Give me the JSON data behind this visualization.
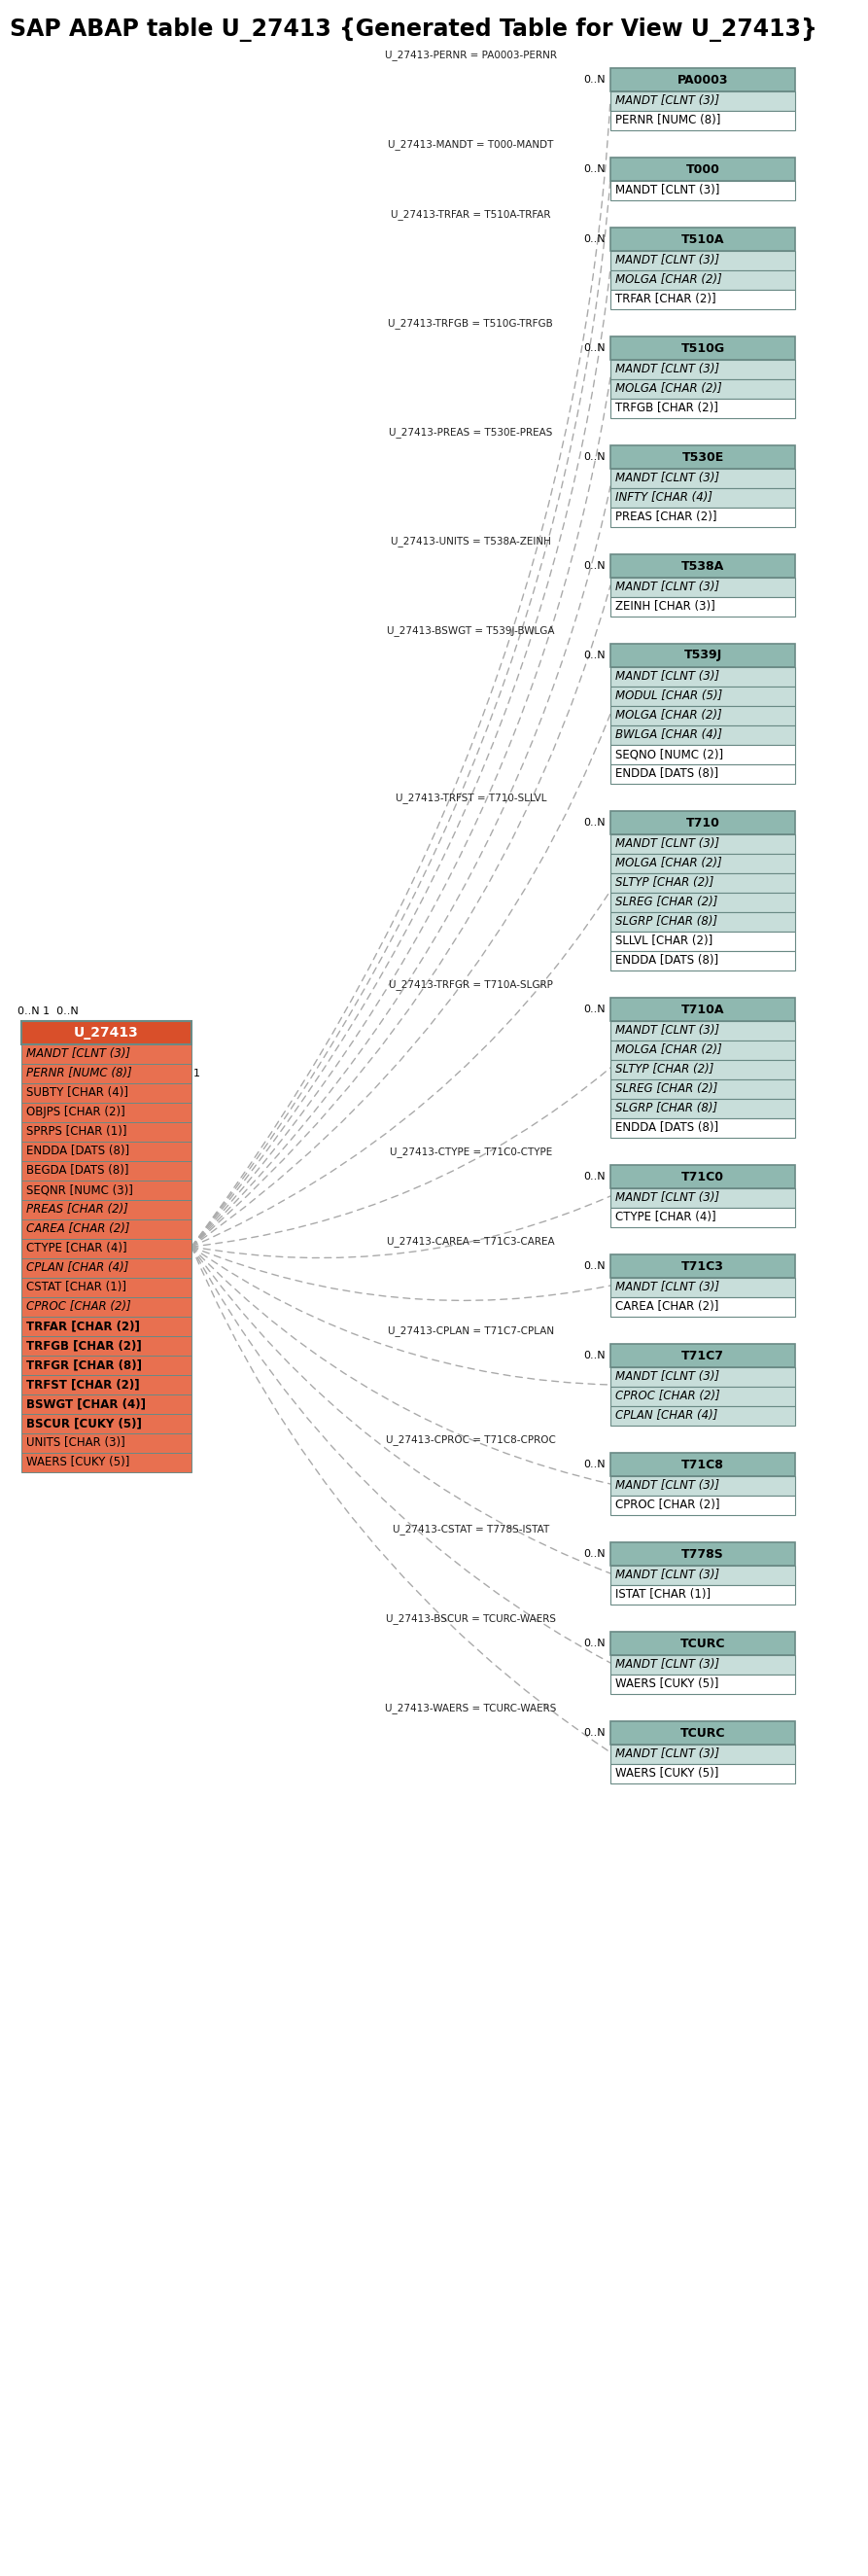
{
  "title": "SAP ABAP table U_27413 {Generated Table for View U_27413}",
  "main_table_name": "U_27413",
  "main_fields": [
    {
      "name": "MANDT",
      "type": "CLNT (3)",
      "italic": true,
      "underline": true,
      "bold": false
    },
    {
      "name": "PERNR",
      "type": "NUMC (8)",
      "italic": true,
      "underline": true,
      "bold": false
    },
    {
      "name": "SUBTY",
      "type": "CHAR (4)",
      "italic": false,
      "underline": true,
      "bold": false
    },
    {
      "name": "OBJPS",
      "type": "CHAR (2)",
      "italic": false,
      "underline": true,
      "bold": false
    },
    {
      "name": "SPRPS",
      "type": "CHAR (1)",
      "italic": false,
      "underline": true,
      "bold": false
    },
    {
      "name": "ENDDA",
      "type": "DATS (8)",
      "italic": false,
      "underline": true,
      "bold": false
    },
    {
      "name": "BEGDA",
      "type": "DATS (8)",
      "italic": false,
      "underline": true,
      "bold": false
    },
    {
      "name": "SEQNR",
      "type": "NUMC (3)",
      "italic": false,
      "underline": true,
      "bold": false
    },
    {
      "name": "PREAS",
      "type": "CHAR (2)",
      "italic": true,
      "underline": false,
      "bold": false
    },
    {
      "name": "CAREA",
      "type": "CHAR (2)",
      "italic": true,
      "underline": false,
      "bold": false
    },
    {
      "name": "CTYPE",
      "type": "CHAR (4)",
      "italic": false,
      "underline": false,
      "bold": false
    },
    {
      "name": "CPLAN",
      "type": "CHAR (4)",
      "italic": true,
      "underline": false,
      "bold": false
    },
    {
      "name": "CSTAT",
      "type": "CHAR (1)",
      "italic": false,
      "underline": false,
      "bold": false
    },
    {
      "name": "CPROC",
      "type": "CHAR (2)",
      "italic": true,
      "underline": false,
      "bold": false
    },
    {
      "name": "TRFAR",
      "type": "CHAR (2)",
      "italic": false,
      "underline": false,
      "bold": true
    },
    {
      "name": "TRFGB",
      "type": "CHAR (2)",
      "italic": false,
      "underline": false,
      "bold": true
    },
    {
      "name": "TRFGR",
      "type": "CHAR (8)",
      "italic": false,
      "underline": false,
      "bold": true
    },
    {
      "name": "TRFST",
      "type": "CHAR (2)",
      "italic": false,
      "underline": false,
      "bold": true
    },
    {
      "name": "BSWGT",
      "type": "CHAR (4)",
      "italic": false,
      "underline": false,
      "bold": true
    },
    {
      "name": "BSCUR",
      "type": "CUKY (5)",
      "italic": false,
      "underline": false,
      "bold": true
    },
    {
      "name": "UNITS",
      "type": "CHAR (3)",
      "italic": false,
      "underline": false,
      "bold": false
    },
    {
      "name": "WAERS",
      "type": "CUKY (5)",
      "italic": false,
      "underline": false,
      "bold": false
    }
  ],
  "related_tables": [
    {
      "name": "PA0003",
      "fields": [
        {
          "name": "MANDT",
          "type": "CLNT (3)",
          "italic": true,
          "underline": true
        },
        {
          "name": "PERNR",
          "type": "NUMC (8)",
          "italic": false,
          "underline": true
        }
      ],
      "relation": "U_27413-PERNR = PA0003-PERNR",
      "cardinality": "0..N"
    },
    {
      "name": "T000",
      "fields": [
        {
          "name": "MANDT",
          "type": "CLNT (3)",
          "italic": false,
          "underline": true
        }
      ],
      "relation": "U_27413-MANDT = T000-MANDT",
      "cardinality": "0..N"
    },
    {
      "name": "T510A",
      "fields": [
        {
          "name": "MANDT",
          "type": "CLNT (3)",
          "italic": true,
          "underline": true
        },
        {
          "name": "MOLGA",
          "type": "CHAR (2)",
          "italic": true,
          "underline": true
        },
        {
          "name": "TRFAR",
          "type": "CHAR (2)",
          "italic": false,
          "underline": true
        }
      ],
      "relation": "U_27413-TRFAR = T510A-TRFAR",
      "cardinality": "0..N"
    },
    {
      "name": "T510G",
      "fields": [
        {
          "name": "MANDT",
          "type": "CLNT (3)",
          "italic": true,
          "underline": true
        },
        {
          "name": "MOLGA",
          "type": "CHAR (2)",
          "italic": true,
          "underline": true
        },
        {
          "name": "TRFGB",
          "type": "CHAR (2)",
          "italic": false,
          "underline": true
        }
      ],
      "relation": "U_27413-TRFGB = T510G-TRFGB",
      "cardinality": "0..N"
    },
    {
      "name": "T530E",
      "fields": [
        {
          "name": "MANDT",
          "type": "CLNT (3)",
          "italic": true,
          "underline": true
        },
        {
          "name": "INFTY",
          "type": "CHAR (4)",
          "italic": true,
          "underline": true
        },
        {
          "name": "PREAS",
          "type": "CHAR (2)",
          "italic": false,
          "underline": true
        }
      ],
      "relation": "U_27413-PREAS = T530E-PREAS",
      "cardinality": "0..N"
    },
    {
      "name": "T538A",
      "fields": [
        {
          "name": "MANDT",
          "type": "CLNT (3)",
          "italic": true,
          "underline": true
        },
        {
          "name": "ZEINH",
          "type": "CHAR (3)",
          "italic": false,
          "underline": true
        }
      ],
      "relation": "U_27413-UNITS = T538A-ZEINH",
      "cardinality": "0..N"
    },
    {
      "name": "T539J",
      "fields": [
        {
          "name": "MANDT",
          "type": "CLNT (3)",
          "italic": true,
          "underline": true
        },
        {
          "name": "MODUL",
          "type": "CHAR (5)",
          "italic": true,
          "underline": true
        },
        {
          "name": "MOLGA",
          "type": "CHAR (2)",
          "italic": true,
          "underline": true
        },
        {
          "name": "BWLGA",
          "type": "CHAR (4)",
          "italic": true,
          "underline": true
        },
        {
          "name": "SEQNO",
          "type": "NUMC (2)",
          "italic": false,
          "underline": true
        },
        {
          "name": "ENDDA",
          "type": "DATS (8)",
          "italic": false,
          "underline": true
        }
      ],
      "relation": "U_27413-BSWGT = T539J-BWLGA",
      "cardinality": "0..N"
    },
    {
      "name": "T710",
      "fields": [
        {
          "name": "MANDT",
          "type": "CLNT (3)",
          "italic": true,
          "underline": true
        },
        {
          "name": "MOLGA",
          "type": "CHAR (2)",
          "italic": true,
          "underline": true
        },
        {
          "name": "SLTYP",
          "type": "CHAR (2)",
          "italic": true,
          "underline": true
        },
        {
          "name": "SLREG",
          "type": "CHAR (2)",
          "italic": true,
          "underline": true
        },
        {
          "name": "SLGRP",
          "type": "CHAR (8)",
          "italic": true,
          "underline": true
        },
        {
          "name": "SLLVL",
          "type": "CHAR (2)",
          "italic": false,
          "underline": true
        },
        {
          "name": "ENDDA",
          "type": "DATS (8)",
          "italic": false,
          "underline": true
        }
      ],
      "relation": "U_27413-TRFST = T710-SLLVL",
      "cardinality": "0..N"
    },
    {
      "name": "T710A",
      "fields": [
        {
          "name": "MANDT",
          "type": "CLNT (3)",
          "italic": true,
          "underline": true
        },
        {
          "name": "MOLGA",
          "type": "CHAR (2)",
          "italic": true,
          "underline": true
        },
        {
          "name": "SLTYP",
          "type": "CHAR (2)",
          "italic": true,
          "underline": true
        },
        {
          "name": "SLREG",
          "type": "CHAR (2)",
          "italic": true,
          "underline": true
        },
        {
          "name": "SLGRP",
          "type": "CHAR (8)",
          "italic": true,
          "underline": true
        },
        {
          "name": "ENDDA",
          "type": "DATS (8)",
          "italic": false,
          "underline": true
        }
      ],
      "relation": "U_27413-TRFGR = T710A-SLGRP",
      "cardinality": "0..N"
    },
    {
      "name": "T71C0",
      "fields": [
        {
          "name": "MANDT",
          "type": "CLNT (3)",
          "italic": true,
          "underline": true
        },
        {
          "name": "CTYPE",
          "type": "CHAR (4)",
          "italic": false,
          "underline": true
        }
      ],
      "relation": "U_27413-CTYPE = T71C0-CTYPE",
      "cardinality": "0..N"
    },
    {
      "name": "T71C3",
      "fields": [
        {
          "name": "MANDT",
          "type": "CLNT (3)",
          "italic": true,
          "underline": true
        },
        {
          "name": "CAREA",
          "type": "CHAR (2)",
          "italic": false,
          "underline": true
        }
      ],
      "relation": "U_27413-CAREA = T71C3-CAREA",
      "cardinality": "0..N"
    },
    {
      "name": "T71C7",
      "fields": [
        {
          "name": "MANDT",
          "type": "CLNT (3)",
          "italic": true,
          "underline": true
        },
        {
          "name": "CPROC",
          "type": "CHAR (2)",
          "italic": true,
          "underline": true
        },
        {
          "name": "CPLAN",
          "type": "CHAR (4)",
          "italic": true,
          "underline": true
        }
      ],
      "relation": "U_27413-CPLAN = T71C7-CPLAN",
      "cardinality": "0..N"
    },
    {
      "name": "T71C8",
      "fields": [
        {
          "name": "MANDT",
          "type": "CLNT (3)",
          "italic": true,
          "underline": true
        },
        {
          "name": "CPROC",
          "type": "CHAR (2)",
          "italic": false,
          "underline": true
        }
      ],
      "relation": "U_27413-CPROC = T71C8-CPROC",
      "cardinality": "0..N"
    },
    {
      "name": "T778S",
      "fields": [
        {
          "name": "MANDT",
          "type": "CLNT (3)",
          "italic": true,
          "underline": true
        },
        {
          "name": "ISTAT",
          "type": "CHAR (1)",
          "italic": false,
          "underline": true
        }
      ],
      "relation": "U_27413-CSTAT = T778S-ISTAT",
      "cardinality": "0..N"
    },
    {
      "name": "TCURC",
      "fields": [
        {
          "name": "MANDT",
          "type": "CLNT (3)",
          "italic": true,
          "underline": true
        },
        {
          "name": "WAERS",
          "type": "CUKY (5)",
          "italic": false,
          "underline": true
        }
      ],
      "relation": "U_27413-BSCUR = TCURC-WAERS",
      "cardinality": "0..N"
    },
    {
      "name": "TCURC",
      "fields": [
        {
          "name": "MANDT",
          "type": "CLNT (3)",
          "italic": true,
          "underline": true
        },
        {
          "name": "WAERS",
          "type": "CUKY (5)",
          "italic": false,
          "underline": true
        }
      ],
      "relation": "U_27413-WAERS = TCURC-WAERS",
      "cardinality": "0..N"
    }
  ],
  "main_header_color": "#d94f2a",
  "main_header_text_color": "#ffffff",
  "main_field_bg": "#e87050",
  "related_header_color": "#8fb8b0",
  "related_header_text_color": "#000000",
  "related_field_key_bg": "#c8deda",
  "related_field_normal_bg": "#ffffff",
  "border_color": "#6a8a85",
  "line_color": "#aaaaaa",
  "text_color": "#000000",
  "bg_color": "#ffffff",
  "title_fontsize": 17,
  "table_fontsize": 9,
  "field_fontsize": 8.5
}
